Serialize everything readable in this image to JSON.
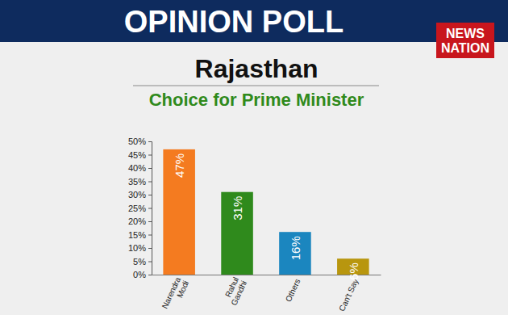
{
  "header": {
    "banner": "OPINION POLL",
    "logo_lines": [
      "NEWS",
      "NATION"
    ]
  },
  "chart_data": {
    "type": "bar",
    "title": "Choice for Prime Minister",
    "subtitle": "Rajasthan",
    "categories": [
      "Narendra Modi",
      "Rahul Gandhi",
      "Others",
      "Can't Say"
    ],
    "values": [
      47,
      31,
      16,
      6
    ],
    "value_labels": [
      "47%",
      "31%",
      "16%",
      "6%"
    ],
    "colors": [
      "#f47b20",
      "#2f8a1c",
      "#1b86bf",
      "#b8960e"
    ],
    "data_labels": true,
    "grid": false,
    "ylim": [
      0,
      50
    ],
    "yticks": [
      {
        "value": 0,
        "label": "0%"
      },
      {
        "value": 5,
        "label": "5%"
      },
      {
        "value": 10,
        "label": "10%"
      },
      {
        "value": 15,
        "label": "15%"
      },
      {
        "value": 20,
        "label": "20%"
      },
      {
        "value": 25,
        "label": "25%"
      },
      {
        "value": 30,
        "label": "30%"
      },
      {
        "value": 35,
        "label": "35%"
      },
      {
        "value": 40,
        "label": "40%"
      },
      {
        "value": 45,
        "label": "45%"
      },
      {
        "value": 50,
        "label": "50%"
      }
    ]
  }
}
